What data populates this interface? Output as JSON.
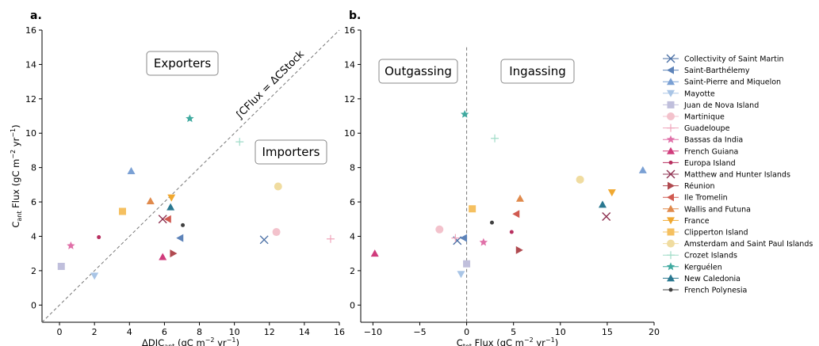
{
  "panels": {
    "a": {
      "letter": "a."
    },
    "b": {
      "letter": "b."
    }
  },
  "legend_items": [
    {
      "name": "Collectivity of Saint Martin",
      "marker": "x",
      "color": "#4a6fa5"
    },
    {
      "name": "Saint-Barthélemy",
      "marker": "tri-left",
      "color": "#5d83b9"
    },
    {
      "name": "Saint-Pierre and Miquelon",
      "marker": "tri-up",
      "color": "#7aa0d4"
    },
    {
      "name": "Mayotte",
      "marker": "tri-down",
      "color": "#a9c5e6"
    },
    {
      "name": "Juan de Nova Island",
      "marker": "square",
      "color": "#c0bfdc"
    },
    {
      "name": "Martinique",
      "marker": "circle",
      "color": "#f3c2cc"
    },
    {
      "name": "Guadeloupe",
      "marker": "plus",
      "color": "#f0a5bb"
    },
    {
      "name": "Bassas da India",
      "marker": "star",
      "color": "#e070a8"
    },
    {
      "name": "French Guiana",
      "marker": "tri-up",
      "color": "#d03c7c"
    },
    {
      "name": "Europa Island",
      "marker": "dot",
      "color": "#b83060"
    },
    {
      "name": "Matthew and Hunter Islands",
      "marker": "x",
      "color": "#8e3050"
    },
    {
      "name": "Réunion",
      "marker": "tri-right",
      "color": "#b04a50"
    },
    {
      "name": "Ile Tromelin",
      "marker": "tri-left",
      "color": "#d05a50"
    },
    {
      "name": "Wallis and Futuna",
      "marker": "tri-up",
      "color": "#e08a4c"
    },
    {
      "name": "France",
      "marker": "tri-down",
      "color": "#f0a830"
    },
    {
      "name": "Clipperton Island",
      "marker": "square",
      "color": "#f5c060"
    },
    {
      "name": "Amsterdam and Saint Paul Islands",
      "marker": "circle",
      "color": "#f0dca0"
    },
    {
      "name": "Crozet Islands",
      "marker": "plus",
      "color": "#a0dcc8"
    },
    {
      "name": "Kerguélen",
      "marker": "star",
      "color": "#40aaa0"
    },
    {
      "name": "New Caledonia",
      "marker": "tri-up",
      "color": "#2a7890"
    },
    {
      "name": "French Polynesia",
      "marker": "dot",
      "color": "#404040"
    }
  ],
  "chart_data": [
    {
      "type": "scatter",
      "panel": "a",
      "xlabel": "ΔDIC",
      "xlabel_sub": "ant",
      "xlabel_units": " (gC m",
      "ylabel": "C",
      "ylabel_sub": "ant",
      "ylabel_rest": " Flux (gC m",
      "units_exp": "−2",
      "units_mid": " yr",
      "units_exp2": "−1",
      "units_end": ")",
      "xlim": [
        -1,
        16
      ],
      "ylim": [
        -1,
        16
      ],
      "xticks": [
        0,
        2,
        4,
        6,
        8,
        10,
        12,
        14,
        16
      ],
      "yticks": [
        0,
        2,
        4,
        6,
        8,
        10,
        12,
        14,
        16
      ],
      "diagonal_label": "∫CFlux = ΔCStock",
      "annotations": [
        "Exporters",
        "Importers"
      ],
      "points": [
        {
          "series": "Collectivity of Saint Martin",
          "x": 11.7,
          "y": 3.8
        },
        {
          "series": "Saint-Barthélemy",
          "x": 6.9,
          "y": 3.9
        },
        {
          "series": "Saint-Pierre and Miquelon",
          "x": 4.1,
          "y": 7.8
        },
        {
          "series": "Mayotte",
          "x": 2.0,
          "y": 1.7
        },
        {
          "series": "Juan de Nova Island",
          "x": 0.1,
          "y": 2.25
        },
        {
          "series": "Martinique",
          "x": 12.4,
          "y": 4.25
        },
        {
          "series": "Guadeloupe",
          "x": 15.5,
          "y": 3.85
        },
        {
          "series": "Bassas da India",
          "x": 0.65,
          "y": 3.45
        },
        {
          "series": "French Guiana",
          "x": 5.9,
          "y": 2.8
        },
        {
          "series": "Europa Island",
          "x": 2.25,
          "y": 3.95
        },
        {
          "series": "Matthew and Hunter Islands",
          "x": 5.9,
          "y": 5.0
        },
        {
          "series": "Réunion",
          "x": 6.5,
          "y": 3.0
        },
        {
          "series": "Ile Tromelin",
          "x": 6.2,
          "y": 5.0
        },
        {
          "series": "Wallis and Futuna",
          "x": 5.2,
          "y": 6.05
        },
        {
          "series": "France",
          "x": 6.4,
          "y": 6.25
        },
        {
          "series": "Clipperton Island",
          "x": 3.6,
          "y": 5.45
        },
        {
          "series": "Amsterdam and Saint Paul Islands",
          "x": 12.5,
          "y": 6.9
        },
        {
          "series": "Crozet Islands",
          "x": 10.3,
          "y": 9.5
        },
        {
          "series": "Kerguélen",
          "x": 7.45,
          "y": 10.85
        },
        {
          "series": "New Caledonia",
          "x": 6.35,
          "y": 5.7
        },
        {
          "series": "French Polynesia",
          "x": 7.05,
          "y": 4.65
        }
      ]
    },
    {
      "type": "scatter",
      "panel": "b",
      "xlabel": "C",
      "xlabel_sub": "tot",
      "xlabel_rest": " Flux (gC m",
      "xlim": [
        -11.3,
        20
      ],
      "ylim": [
        -1,
        16
      ],
      "xticks": [
        -10,
        -5,
        0,
        5,
        10,
        15,
        20
      ],
      "yticks": [
        0,
        2,
        4,
        6,
        8,
        10,
        12,
        14,
        16
      ],
      "annotations": [
        "Outgassing",
        "Ingassing"
      ],
      "points": [
        {
          "series": "Collectivity of Saint Martin",
          "x": -1.0,
          "y": 3.75
        },
        {
          "series": "Saint-Barthélemy",
          "x": -0.3,
          "y": 3.9
        },
        {
          "series": "Saint-Pierre and Miquelon",
          "x": 18.8,
          "y": 7.85
        },
        {
          "series": "Mayotte",
          "x": -0.6,
          "y": 1.8
        },
        {
          "series": "Juan de Nova Island",
          "x": 0.0,
          "y": 2.4
        },
        {
          "series": "Martinique",
          "x": -2.9,
          "y": 4.4
        },
        {
          "series": "Guadeloupe",
          "x": -1.2,
          "y": 3.9
        },
        {
          "series": "Bassas da India",
          "x": 1.8,
          "y": 3.65
        },
        {
          "series": "French Guiana",
          "x": -9.8,
          "y": 3.0
        },
        {
          "series": "Europa Island",
          "x": 4.8,
          "y": 4.25
        },
        {
          "series": "Matthew and Hunter Islands",
          "x": 14.9,
          "y": 5.15
        },
        {
          "series": "Réunion",
          "x": 5.6,
          "y": 3.2
        },
        {
          "series": "Ile Tromelin",
          "x": 5.3,
          "y": 5.3
        },
        {
          "series": "Wallis and Futuna",
          "x": 5.7,
          "y": 6.2
        },
        {
          "series": "France",
          "x": 15.5,
          "y": 6.55
        },
        {
          "series": "Clipperton Island",
          "x": 0.6,
          "y": 5.6
        },
        {
          "series": "Amsterdam and Saint Paul Islands",
          "x": 12.1,
          "y": 7.3
        },
        {
          "series": "Crozet Islands",
          "x": 3.0,
          "y": 9.7
        },
        {
          "series": "Kerguélen",
          "x": -0.2,
          "y": 11.1
        },
        {
          "series": "New Caledonia",
          "x": 14.5,
          "y": 5.85
        },
        {
          "series": "French Polynesia",
          "x": 2.7,
          "y": 4.8
        }
      ]
    }
  ]
}
